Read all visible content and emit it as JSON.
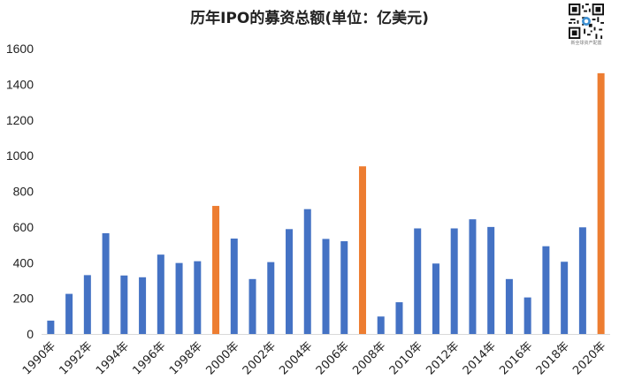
{
  "chart_data": {
    "type": "bar",
    "title": "历年IPO的募资总额(单位：亿美元)",
    "xlabel": "",
    "ylabel": "",
    "ylim": [
      0,
      1600
    ],
    "yticks": [
      0,
      200,
      400,
      600,
      800,
      1000,
      1200,
      1400,
      1600
    ],
    "grid": false,
    "categories": [
      "1990年",
      "1991年",
      "1992年",
      "1993年",
      "1994年",
      "1995年",
      "1996年",
      "1997年",
      "1998年",
      "1999年",
      "2000年",
      "2001年",
      "2002年",
      "2003年",
      "2004年",
      "2005年",
      "2006年",
      "2007年",
      "2008年",
      "2009年",
      "2010年",
      "2011年",
      "2012年",
      "2013年",
      "2014年",
      "2015年",
      "2016年",
      "2017年",
      "2018年",
      "2019年",
      "2020年"
    ],
    "tick_labels": [
      "1990年",
      "1992年",
      "1994年",
      "1996年",
      "1998年",
      "2000年",
      "2002年",
      "2004年",
      "2006年",
      "2008年",
      "2010年",
      "2012年",
      "2014年",
      "2016年",
      "2018年",
      "2020年"
    ],
    "values": [
      75,
      225,
      330,
      565,
      328,
      318,
      445,
      398,
      408,
      718,
      535,
      308,
      403,
      588,
      700,
      533,
      520,
      940,
      98,
      178,
      592,
      395,
      592,
      643,
      600,
      308,
      205,
      492,
      405,
      598,
      1462
    ],
    "highlight": [
      "1999年",
      "2007年",
      "2020年"
    ],
    "colors": {
      "normal": "#4472C4",
      "highlight": "#ED7D31"
    }
  },
  "watermark": {
    "caption": "新全球资产配置"
  }
}
